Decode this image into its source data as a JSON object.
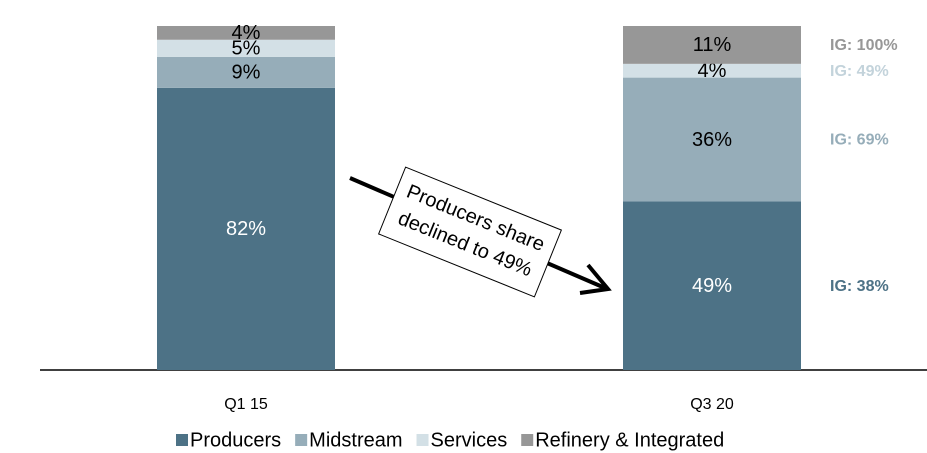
{
  "chart_data": {
    "type": "stacked-bar",
    "categories": [
      "Q1 15",
      "Q3 20"
    ],
    "series": [
      {
        "name": "Producers",
        "color": "#4d7286",
        "label_color": "#ffffff",
        "values": [
          82,
          49
        ],
        "value_labels": [
          "82%",
          "49%"
        ],
        "annotation": "IG: 38%"
      },
      {
        "name": "Midstream",
        "color": "#96adb9",
        "label_color": "#000000",
        "values": [
          9,
          36
        ],
        "value_labels": [
          "9%",
          "36%"
        ],
        "annotation": "IG: 69%"
      },
      {
        "name": "Services",
        "color": "#d3e0e6",
        "label_color": "#000000",
        "values": [
          5,
          4
        ],
        "value_labels": [
          "5%",
          "4%"
        ],
        "annotation": "IG: 49%"
      },
      {
        "name": "Refinery & Integrated",
        "color": "#979797",
        "label_color": "#000000",
        "values": [
          4,
          11
        ],
        "value_labels": [
          "4%",
          "11%"
        ],
        "annotation": "IG: 100%"
      }
    ],
    "callout": [
      "Producers share",
      "declined to 49%"
    ]
  }
}
